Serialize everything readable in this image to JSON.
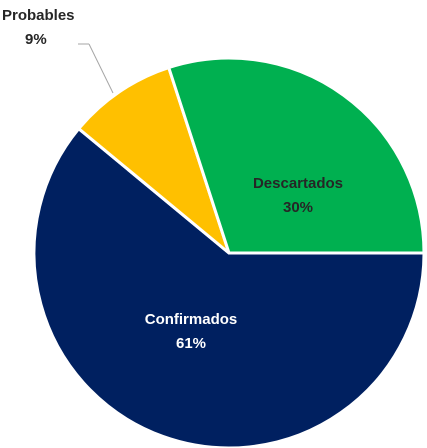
{
  "chart_data": {
    "type": "pie",
    "title": "",
    "legend": "none",
    "start": "3 o'clock, clockwise",
    "slices": [
      {
        "label": "Confirmados",
        "value": 61,
        "display": "61%",
        "color": "#002060",
        "text_color": "#ffffff"
      },
      {
        "label": "Probables",
        "value": 9,
        "display": "9%",
        "color": "#FFC000",
        "text_color": "#262626"
      },
      {
        "label": "Descartados",
        "value": 30,
        "display": "30%",
        "color": "#00B050",
        "text_color": "#262626"
      }
    ]
  }
}
